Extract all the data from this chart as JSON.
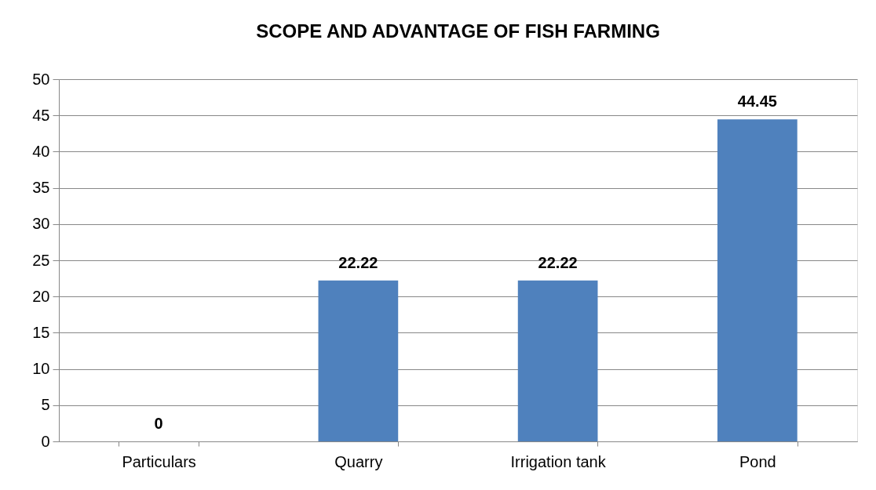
{
  "chart_data": {
    "type": "bar",
    "title": "SCOPE AND ADVANTAGE OF FISH FARMING",
    "categories": [
      "Particulars",
      "Quarry",
      "Irrigation tank",
      "Pond"
    ],
    "values": [
      0,
      22.22,
      22.22,
      44.45
    ],
    "color": "#4f81bd",
    "ylim": [
      0,
      50
    ],
    "yticks": [
      0,
      5,
      10,
      15,
      20,
      25,
      30,
      35,
      40,
      45,
      50
    ],
    "grid": "y",
    "data_labels": true
  }
}
